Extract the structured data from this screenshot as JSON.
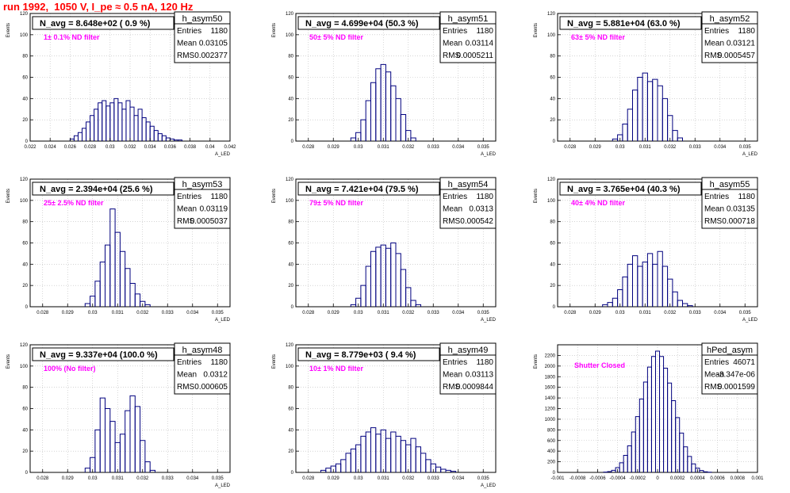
{
  "title": "run 1992,  1050 V, I_pe ≈ 0.5 nA, 120 Hz",
  "colors": {
    "title": "#ff0000",
    "histogram": "#00007f",
    "annotation": "#ff00ff",
    "frame": "#000000"
  },
  "chart_data": [
    {
      "type": "bar",
      "name": "h_asym50",
      "header": "N_avg = 8.648e+02 ( 0.9 %)",
      "annotation": "1± 0.1% ND filter",
      "stats": [
        [
          "Entries",
          "1180"
        ],
        [
          "Mean",
          "0.03105"
        ],
        [
          "RMS",
          "0.002377"
        ]
      ],
      "ylabel": "Events",
      "xlabel": "A_LED",
      "xlim": [
        0.022,
        0.042
      ],
      "ylim": [
        0,
        120
      ],
      "xticks": [
        0.022,
        0.024,
        0.026,
        0.028,
        0.03,
        0.032,
        0.034,
        0.036,
        0.038,
        0.04,
        0.042
      ],
      "xticklabels": [
        "0.022",
        "0.024",
        "0.026",
        "0.028",
        "0.03",
        "0.032",
        "0.034",
        "0.036",
        "0.038",
        "0.04",
        "0.042"
      ],
      "yticks": [
        0,
        20,
        40,
        60,
        80,
        100,
        120
      ],
      "x": [
        0.0262,
        0.0266,
        0.027,
        0.0274,
        0.0278,
        0.0282,
        0.0286,
        0.029,
        0.0294,
        0.0298,
        0.0302,
        0.0306,
        0.031,
        0.0314,
        0.0318,
        0.0322,
        0.0326,
        0.033,
        0.0334,
        0.0338,
        0.0342,
        0.0346,
        0.035,
        0.0354,
        0.0358,
        0.0362,
        0.0366,
        0.037
      ],
      "values": [
        2,
        5,
        8,
        12,
        18,
        24,
        30,
        36,
        38,
        33,
        36,
        40,
        36,
        30,
        38,
        32,
        24,
        30,
        22,
        18,
        14,
        10,
        7,
        5,
        3,
        2,
        1,
        1
      ]
    },
    {
      "type": "bar",
      "name": "h_asym51",
      "header": "N_avg = 4.699e+04 (50.3 %)",
      "annotation": "50± 5% ND filter",
      "stats": [
        [
          "Entries",
          "1180"
        ],
        [
          "Mean",
          "0.03114"
        ],
        [
          "RMS",
          "0.0005211"
        ]
      ],
      "ylabel": "Events",
      "xlabel": "A_LED",
      "xlim": [
        0.0275,
        0.0355
      ],
      "ylim": [
        0,
        120
      ],
      "xticks": [
        0.028,
        0.029,
        0.03,
        0.031,
        0.032,
        0.033,
        0.034,
        0.035
      ],
      "xticklabels": [
        "0.028",
        "0.029",
        "0.03",
        "0.031",
        "0.032",
        "0.033",
        "0.034",
        "0.035"
      ],
      "yticks": [
        0,
        20,
        40,
        60,
        80,
        100,
        120
      ],
      "x": [
        0.0298,
        0.03,
        0.0302,
        0.0304,
        0.0306,
        0.0308,
        0.031,
        0.0312,
        0.0314,
        0.0316,
        0.0318,
        0.032,
        0.0322
      ],
      "values": [
        3,
        8,
        20,
        38,
        55,
        68,
        72,
        65,
        52,
        40,
        25,
        10,
        3
      ]
    },
    {
      "type": "bar",
      "name": "h_asym52",
      "header": "N_avg = 5.881e+04 (63.0 %)",
      "annotation": "63± 5% ND filter",
      "stats": [
        [
          "Entries",
          "1180"
        ],
        [
          "Mean",
          "0.03121"
        ],
        [
          "RMS",
          "0.0005457"
        ]
      ],
      "ylabel": "Events",
      "xlabel": "A_LED",
      "xlim": [
        0.0275,
        0.0355
      ],
      "ylim": [
        0,
        120
      ],
      "xticks": [
        0.028,
        0.029,
        0.03,
        0.031,
        0.032,
        0.033,
        0.034,
        0.035
      ],
      "xticklabels": [
        "0.028",
        "0.029",
        "0.03",
        "0.031",
        "0.032",
        "0.033",
        "0.034",
        "0.035"
      ],
      "yticks": [
        0,
        20,
        40,
        60,
        80,
        100,
        120
      ],
      "x": [
        0.0298,
        0.03,
        0.0302,
        0.0304,
        0.0306,
        0.0308,
        0.031,
        0.0312,
        0.0314,
        0.0316,
        0.0318,
        0.032,
        0.0322,
        0.0324
      ],
      "values": [
        2,
        6,
        16,
        30,
        48,
        60,
        64,
        56,
        58,
        52,
        40,
        24,
        10,
        3
      ]
    },
    {
      "type": "bar",
      "name": "h_asym53",
      "header": "N_avg = 2.394e+04 (25.6 %)",
      "annotation": "25± 2.5% ND filter",
      "stats": [
        [
          "Entries",
          "1180"
        ],
        [
          "Mean",
          "0.03119"
        ],
        [
          "RMS",
          "0.0005037"
        ]
      ],
      "ylabel": "Events",
      "xlabel": "A_LED",
      "xlim": [
        0.0275,
        0.0355
      ],
      "ylim": [
        0,
        120
      ],
      "xticks": [
        0.028,
        0.029,
        0.03,
        0.031,
        0.032,
        0.033,
        0.034,
        0.035
      ],
      "xticklabels": [
        "0.028",
        "0.029",
        "0.03",
        "0.031",
        "0.032",
        "0.033",
        "0.034",
        "0.035"
      ],
      "yticks": [
        0,
        20,
        40,
        60,
        80,
        100,
        120
      ],
      "x": [
        0.0298,
        0.03,
        0.0302,
        0.0304,
        0.0306,
        0.0308,
        0.031,
        0.0312,
        0.0314,
        0.0316,
        0.0318,
        0.032,
        0.0322
      ],
      "values": [
        3,
        10,
        24,
        42,
        58,
        92,
        70,
        52,
        36,
        22,
        12,
        5,
        2
      ]
    },
    {
      "type": "bar",
      "name": "h_asym54",
      "header": "N_avg = 7.421e+04 (79.5 %)",
      "annotation": "79± 5% ND filter",
      "stats": [
        [
          "Entries",
          "1180"
        ],
        [
          "Mean",
          "0.0313"
        ],
        [
          "RMS",
          "0.000542"
        ]
      ],
      "ylabel": "Events",
      "xlabel": "A_LED",
      "xlim": [
        0.0275,
        0.0355
      ],
      "ylim": [
        0,
        120
      ],
      "xticks": [
        0.028,
        0.029,
        0.03,
        0.031,
        0.032,
        0.033,
        0.034,
        0.035
      ],
      "xticklabels": [
        "0.028",
        "0.029",
        "0.03",
        "0.031",
        "0.032",
        "0.033",
        "0.034",
        "0.035"
      ],
      "yticks": [
        0,
        20,
        40,
        60,
        80,
        100,
        120
      ],
      "x": [
        0.0298,
        0.03,
        0.0302,
        0.0304,
        0.0306,
        0.0308,
        0.031,
        0.0312,
        0.0314,
        0.0316,
        0.0318,
        0.032,
        0.0322,
        0.0324
      ],
      "values": [
        2,
        8,
        20,
        38,
        52,
        56,
        58,
        55,
        60,
        50,
        35,
        18,
        6,
        2
      ]
    },
    {
      "type": "bar",
      "name": "h_asym55",
      "header": "N_avg = 3.765e+04 (40.3 %)",
      "annotation": "40± 4% ND filter",
      "stats": [
        [
          "Entries",
          "1180"
        ],
        [
          "Mean",
          "0.03135"
        ],
        [
          "RMS",
          "0.000718"
        ]
      ],
      "ylabel": "Events",
      "xlabel": "A_LED",
      "xlim": [
        0.0275,
        0.0355
      ],
      "ylim": [
        0,
        120
      ],
      "xticks": [
        0.028,
        0.029,
        0.03,
        0.031,
        0.032,
        0.033,
        0.034,
        0.035
      ],
      "xticklabels": [
        "0.028",
        "0.029",
        "0.03",
        "0.031",
        "0.032",
        "0.033",
        "0.034",
        "0.035"
      ],
      "yticks": [
        0,
        20,
        40,
        60,
        80,
        100,
        120
      ],
      "x": [
        0.0294,
        0.0296,
        0.0298,
        0.03,
        0.0302,
        0.0304,
        0.0306,
        0.0308,
        0.031,
        0.0312,
        0.0314,
        0.0316,
        0.0318,
        0.032,
        0.0322,
        0.0324,
        0.0326,
        0.0328
      ],
      "values": [
        2,
        4,
        8,
        16,
        28,
        40,
        48,
        38,
        42,
        50,
        40,
        52,
        38,
        26,
        14,
        6,
        3,
        1
      ]
    },
    {
      "type": "bar",
      "name": "h_asym48",
      "header": "N_avg = 9.337e+04 (100.0 %)",
      "annotation": "100% (No filter)",
      "stats": [
        [
          "Entries",
          "1180"
        ],
        [
          "Mean",
          "0.0312"
        ],
        [
          "RMS",
          "0.000605"
        ]
      ],
      "ylabel": "Events",
      "xlabel": "A_LED",
      "xlim": [
        0.0275,
        0.0355
      ],
      "ylim": [
        0,
        120
      ],
      "xticks": [
        0.028,
        0.029,
        0.03,
        0.031,
        0.032,
        0.033,
        0.034,
        0.035
      ],
      "xticklabels": [
        "0.028",
        "0.029",
        "0.03",
        "0.031",
        "0.032",
        "0.033",
        "0.034",
        "0.035"
      ],
      "yticks": [
        0,
        20,
        40,
        60,
        80,
        100,
        120
      ],
      "x": [
        0.0298,
        0.03,
        0.0302,
        0.0304,
        0.0306,
        0.0308,
        0.031,
        0.0312,
        0.0314,
        0.0316,
        0.0318,
        0.032,
        0.0322,
        0.0324
      ],
      "values": [
        4,
        14,
        40,
        70,
        60,
        48,
        28,
        36,
        58,
        72,
        62,
        30,
        10,
        2
      ]
    },
    {
      "type": "bar",
      "name": "h_asym49",
      "header": "N_avg = 8.779e+03 ( 9.4 %)",
      "annotation": "10± 1% ND filter",
      "stats": [
        [
          "Entries",
          "1180"
        ],
        [
          "Mean",
          "0.03113"
        ],
        [
          "RMS",
          "0.0009844"
        ]
      ],
      "ylabel": "Events",
      "xlabel": "A_LED",
      "xlim": [
        0.0275,
        0.0355
      ],
      "ylim": [
        0,
        120
      ],
      "xticks": [
        0.028,
        0.029,
        0.03,
        0.031,
        0.032,
        0.033,
        0.034,
        0.035
      ],
      "xticklabels": [
        "0.028",
        "0.029",
        "0.03",
        "0.031",
        "0.032",
        "0.033",
        "0.034",
        "0.035"
      ],
      "yticks": [
        0,
        20,
        40,
        60,
        80,
        100,
        120
      ],
      "x": [
        0.0286,
        0.0288,
        0.029,
        0.0292,
        0.0294,
        0.0296,
        0.0298,
        0.03,
        0.0302,
        0.0304,
        0.0306,
        0.0308,
        0.031,
        0.0312,
        0.0314,
        0.0316,
        0.0318,
        0.032,
        0.0322,
        0.0324,
        0.0326,
        0.0328,
        0.033,
        0.0332,
        0.0334,
        0.0336,
        0.0338
      ],
      "values": [
        2,
        4,
        6,
        8,
        12,
        18,
        22,
        26,
        34,
        38,
        42,
        36,
        40,
        32,
        38,
        34,
        30,
        26,
        32,
        24,
        18,
        12,
        8,
        5,
        3,
        2,
        1
      ]
    },
    {
      "type": "bar",
      "name": "hPed_asym",
      "header": "",
      "annotation": "Shutter Closed",
      "stats": [
        [
          "Entries",
          "46071"
        ],
        [
          "Mean",
          "-3.347e-06"
        ],
        [
          "RMS",
          "0.0001599"
        ]
      ],
      "ylabel": "Events",
      "xlabel": "",
      "xlim": [
        -0.001,
        0.001
      ],
      "ylim": [
        0,
        2400
      ],
      "xticks": [
        -0.001,
        -0.0008,
        -0.0006,
        -0.0004,
        -0.0002,
        0,
        0.0002,
        0.0004,
        0.0006,
        0.0008,
        0.001
      ],
      "xticklabels": [
        "-0.001",
        "-0.0008",
        "-0.0006",
        "-0.0004",
        "-0.0002",
        "0",
        "0.0002",
        "0.0004",
        "0.0006",
        "0.0008",
        "0.001"
      ],
      "yticks": [
        0,
        200,
        400,
        600,
        800,
        1000,
        1200,
        1400,
        1600,
        1800,
        2000,
        2200
      ],
      "x": [
        -0.00052,
        -0.00048,
        -0.00044,
        -0.0004,
        -0.00036,
        -0.00032,
        -0.00028,
        -0.00024,
        -0.0002,
        -0.00016,
        -0.00012,
        -8e-05,
        -4e-05,
        0,
        4e-05,
        8e-05,
        0.00012,
        0.00016,
        0.0002,
        0.00024,
        0.00028,
        0.00032,
        0.00036,
        0.0004,
        0.00044,
        0.00048,
        0.00052
      ],
      "values": [
        5,
        15,
        40,
        90,
        180,
        320,
        500,
        760,
        1050,
        1380,
        1700,
        1980,
        2180,
        2280,
        2180,
        1960,
        1680,
        1350,
        1030,
        740,
        480,
        300,
        160,
        80,
        35,
        12,
        4
      ]
    }
  ]
}
